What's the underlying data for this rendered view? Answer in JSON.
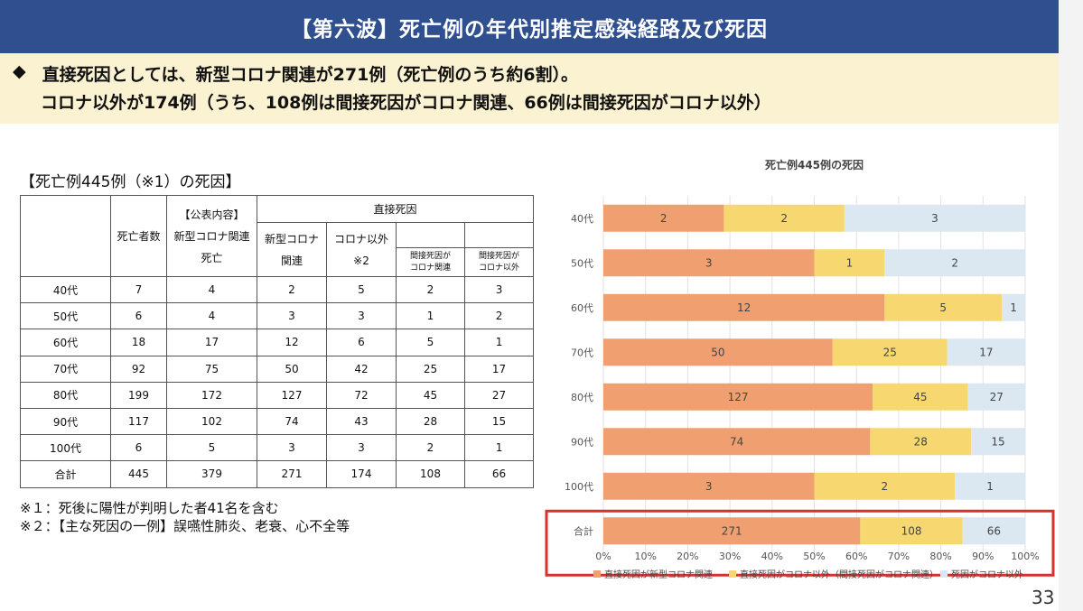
{
  "header": {
    "title": "【第六波】死亡例の年代別推定感染経路及び死因"
  },
  "summary": {
    "bullet": "◆",
    "line1": "直接死因としては、新型コロナ関連が271例（死亡例のうち約6割）。",
    "line2": "コロナ以外が174例（うち、108例は間接死因がコロナ関連、66例は間接死因がコロナ以外）"
  },
  "table": {
    "title": "【死亡例445例（※1）の死因】",
    "headers": {
      "deaths": "死亡者数",
      "published_1": "【公表内容】",
      "published_2": "新型コロナ関連",
      "published_3": "死亡",
      "direct": "直接死因",
      "covid_1": "新型コロナ",
      "covid_2": "関連",
      "noncovid_1": "コロナ以外",
      "noncovid_2": "※2",
      "ind_covid_1": "間接死因が",
      "ind_covid_2": "コロナ関連",
      "ind_non_1": "間接死因が",
      "ind_non_2": "コロナ以外"
    },
    "rows": [
      [
        "40代",
        "7",
        "4",
        "2",
        "5",
        "2",
        "3"
      ],
      [
        "50代",
        "6",
        "4",
        "3",
        "3",
        "1",
        "2"
      ],
      [
        "60代",
        "18",
        "17",
        "12",
        "6",
        "5",
        "1"
      ],
      [
        "70代",
        "92",
        "75",
        "50",
        "42",
        "25",
        "17"
      ],
      [
        "80代",
        "199",
        "172",
        "127",
        "72",
        "45",
        "27"
      ],
      [
        "90代",
        "117",
        "102",
        "74",
        "43",
        "28",
        "15"
      ],
      [
        "100代",
        "6",
        "5",
        "3",
        "3",
        "2",
        "1"
      ],
      [
        "合計",
        "445",
        "379",
        "271",
        "174",
        "108",
        "66"
      ]
    ]
  },
  "notes": {
    "n1": "※１：死後に陽性が判明した者41名を含む",
    "n2": "※２：【主な死因の一例】誤嚥性肺炎、老衰、心不全等"
  },
  "chart_data": {
    "type": "bar",
    "orientation": "horizontal",
    "stacked": "percent",
    "title": "死亡例445例の死因",
    "categories": [
      "40代",
      "50代",
      "60代",
      "70代",
      "80代",
      "90代",
      "100代",
      "合計"
    ],
    "series": [
      {
        "name": "直接死因が新型コロナ関連",
        "values": [
          2,
          3,
          12,
          50,
          127,
          74,
          3,
          271
        ],
        "color": "#f0a070"
      },
      {
        "name": "直接死因がコロナ以外（間接死因がコロナ関連）",
        "values": [
          2,
          1,
          5,
          25,
          45,
          28,
          2,
          108
        ],
        "color": "#f7d870"
      },
      {
        "name": "死因がコロナ以外",
        "values": [
          3,
          2,
          1,
          17,
          27,
          15,
          1,
          66
        ],
        "color": "#dbe8f2"
      }
    ],
    "xlim": [
      0,
      100
    ],
    "x_ticks": [
      "0%",
      "10%",
      "20%",
      "30%",
      "40%",
      "50%",
      "60%",
      "70%",
      "80%",
      "90%",
      "100%"
    ],
    "grid": true,
    "legend": "bottom",
    "highlight": {
      "category": "合計",
      "color": "#d9302a"
    }
  },
  "page_number": "33"
}
